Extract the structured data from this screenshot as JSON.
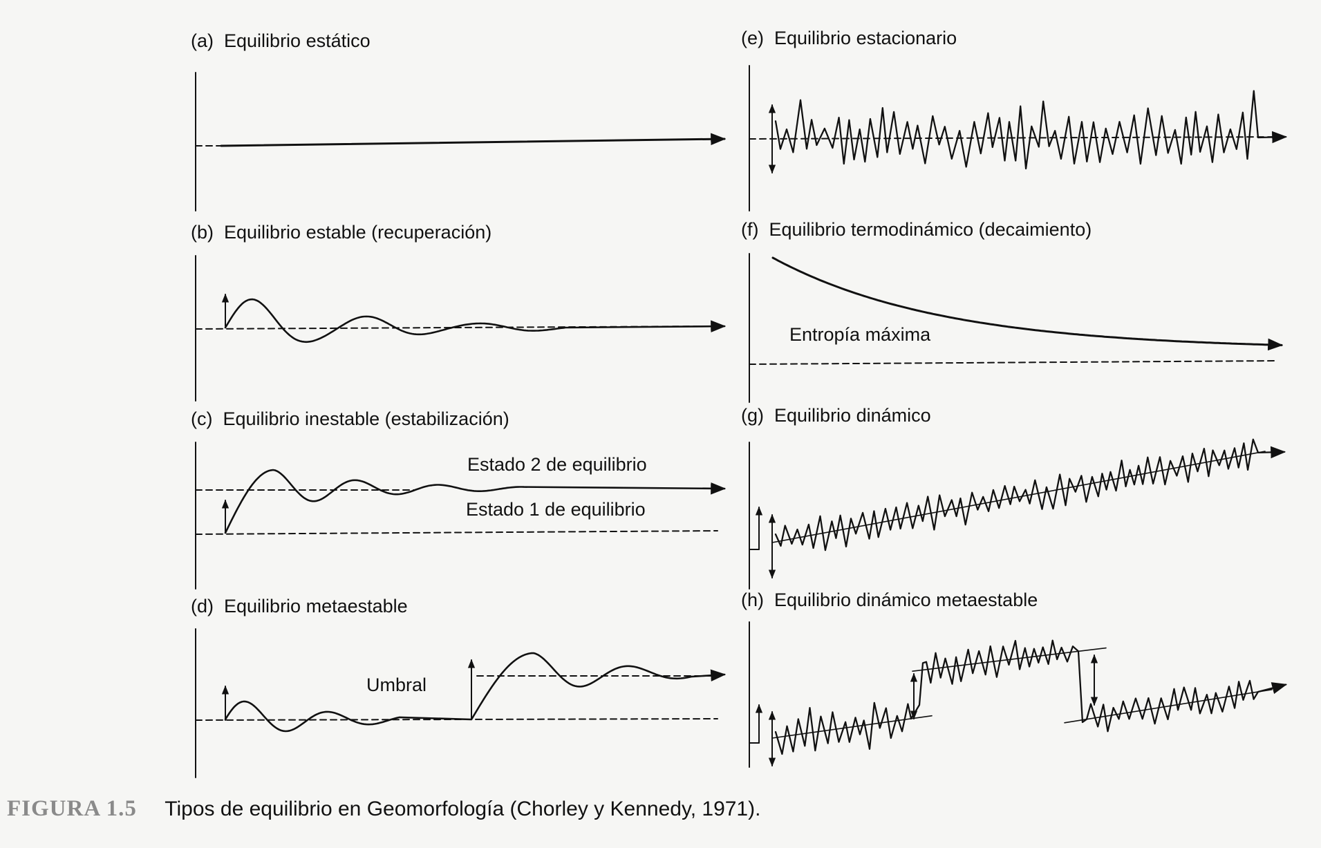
{
  "panels": {
    "a": {
      "label": "(a)",
      "title": "Equilibrio estático"
    },
    "b": {
      "label": "(b)",
      "title": "Equilibrio estable (recuperación)"
    },
    "c": {
      "label": "(c)",
      "title": "Equilibrio inestable (estabilización)",
      "state2": "Estado 2 de equilibrio",
      "state1": "Estado 1 de equilibrio"
    },
    "d": {
      "label": "(d)",
      "title": "Equilibrio metaestable",
      "threshold": "Umbral"
    },
    "e": {
      "label": "(e)",
      "title": "Equilibrio estacionario"
    },
    "f": {
      "label": "(f)",
      "title": "Equilibrio termodinámico (decaimiento)",
      "entropy": "Entropía máxima"
    },
    "g": {
      "label": "(g)",
      "title": "Equilibrio dinámico"
    },
    "h": {
      "label": "(h)",
      "title": "Equilibrio dinámico metaestable"
    }
  },
  "caption": {
    "figure": "FIGURA 1.5",
    "text": "Tipos de equilibrio en Geomorfología (Chorley y Kennedy, 1971)."
  },
  "colors": {
    "ink": "#111111",
    "paper": "#f6f6f4",
    "caption_figure": "#8a8a8a"
  }
}
